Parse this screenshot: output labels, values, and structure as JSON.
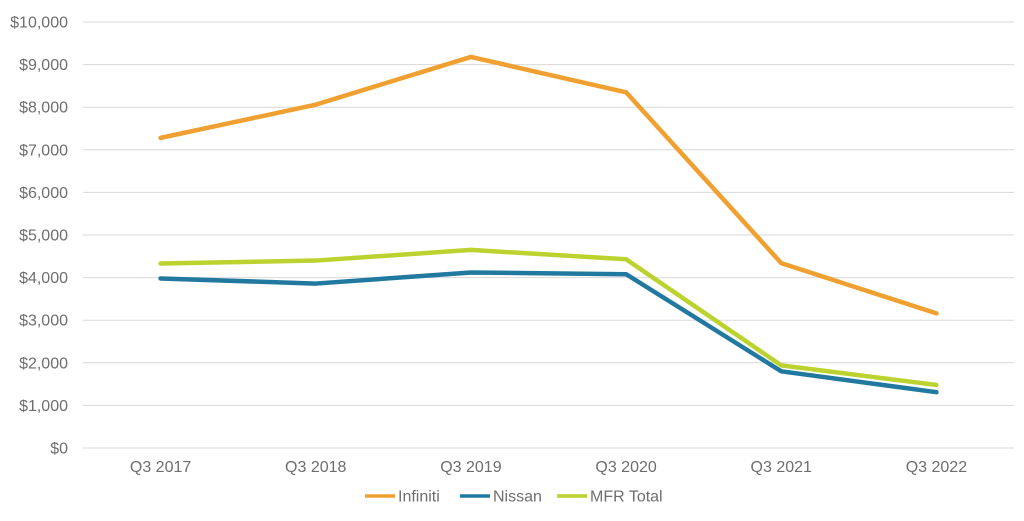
{
  "chart_data": {
    "type": "line",
    "title": "",
    "xlabel": "",
    "ylabel": "",
    "categories": [
      "Q3 2017",
      "Q3 2018",
      "Q3 2019",
      "Q3 2020",
      "Q3 2021",
      "Q3 2022"
    ],
    "series": [
      {
        "name": "Infiniti",
        "color": "#F0A030",
        "values": [
          7280,
          8060,
          9180,
          8350,
          4340,
          3160
        ]
      },
      {
        "name": "Nissan",
        "color": "#2279A0",
        "values": [
          3980,
          3860,
          4120,
          4080,
          1800,
          1310
        ]
      },
      {
        "name": "MFR Total",
        "color": "#BCD22F",
        "values": [
          4330,
          4400,
          4650,
          4430,
          1940,
          1480
        ]
      }
    ],
    "ylim": [
      0,
      10000
    ],
    "y_tick_step": 1000,
    "y_tick_labels": [
      "$0",
      "$1,000",
      "$2,000",
      "$3,000",
      "$4,000",
      "$5,000",
      "$6,000",
      "$7,000",
      "$8,000",
      "$9,000",
      "$10,000"
    ],
    "grid": "horizontal",
    "legend_position": "bottom-center",
    "legend_entries": [
      "Infiniti",
      "Nissan",
      "MFR Total"
    ],
    "colors": {
      "axis_text": "#6E6E6E",
      "gridline": "#D9D9D9",
      "background": "#FFFFFF"
    }
  }
}
